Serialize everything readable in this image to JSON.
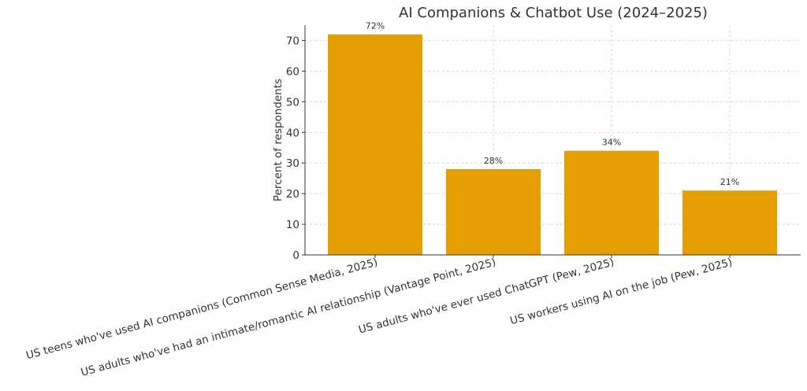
{
  "chart_data": {
    "type": "bar",
    "title": "AI Companions & Chatbot Use (2024–2025)",
    "xlabel": "",
    "ylabel": "Percent of respondents",
    "ylim": [
      0,
      75
    ],
    "yticks": [
      0,
      10,
      20,
      30,
      40,
      50,
      60,
      70
    ],
    "grid": true,
    "categories": [
      "US teens who've used AI companions (Common Sense Media, 2025)",
      "US adults who've had an intimate/romantic AI relationship (Vantage Point, 2025)",
      "US adults who've ever used ChatGPT (Pew, 2025)",
      "US workers using AI on the job (Pew, 2025)"
    ],
    "values": [
      72,
      28,
      34,
      21
    ],
    "data_labels": [
      "72%",
      "28%",
      "34%",
      "21%"
    ],
    "bar_color": "#E49E00"
  }
}
